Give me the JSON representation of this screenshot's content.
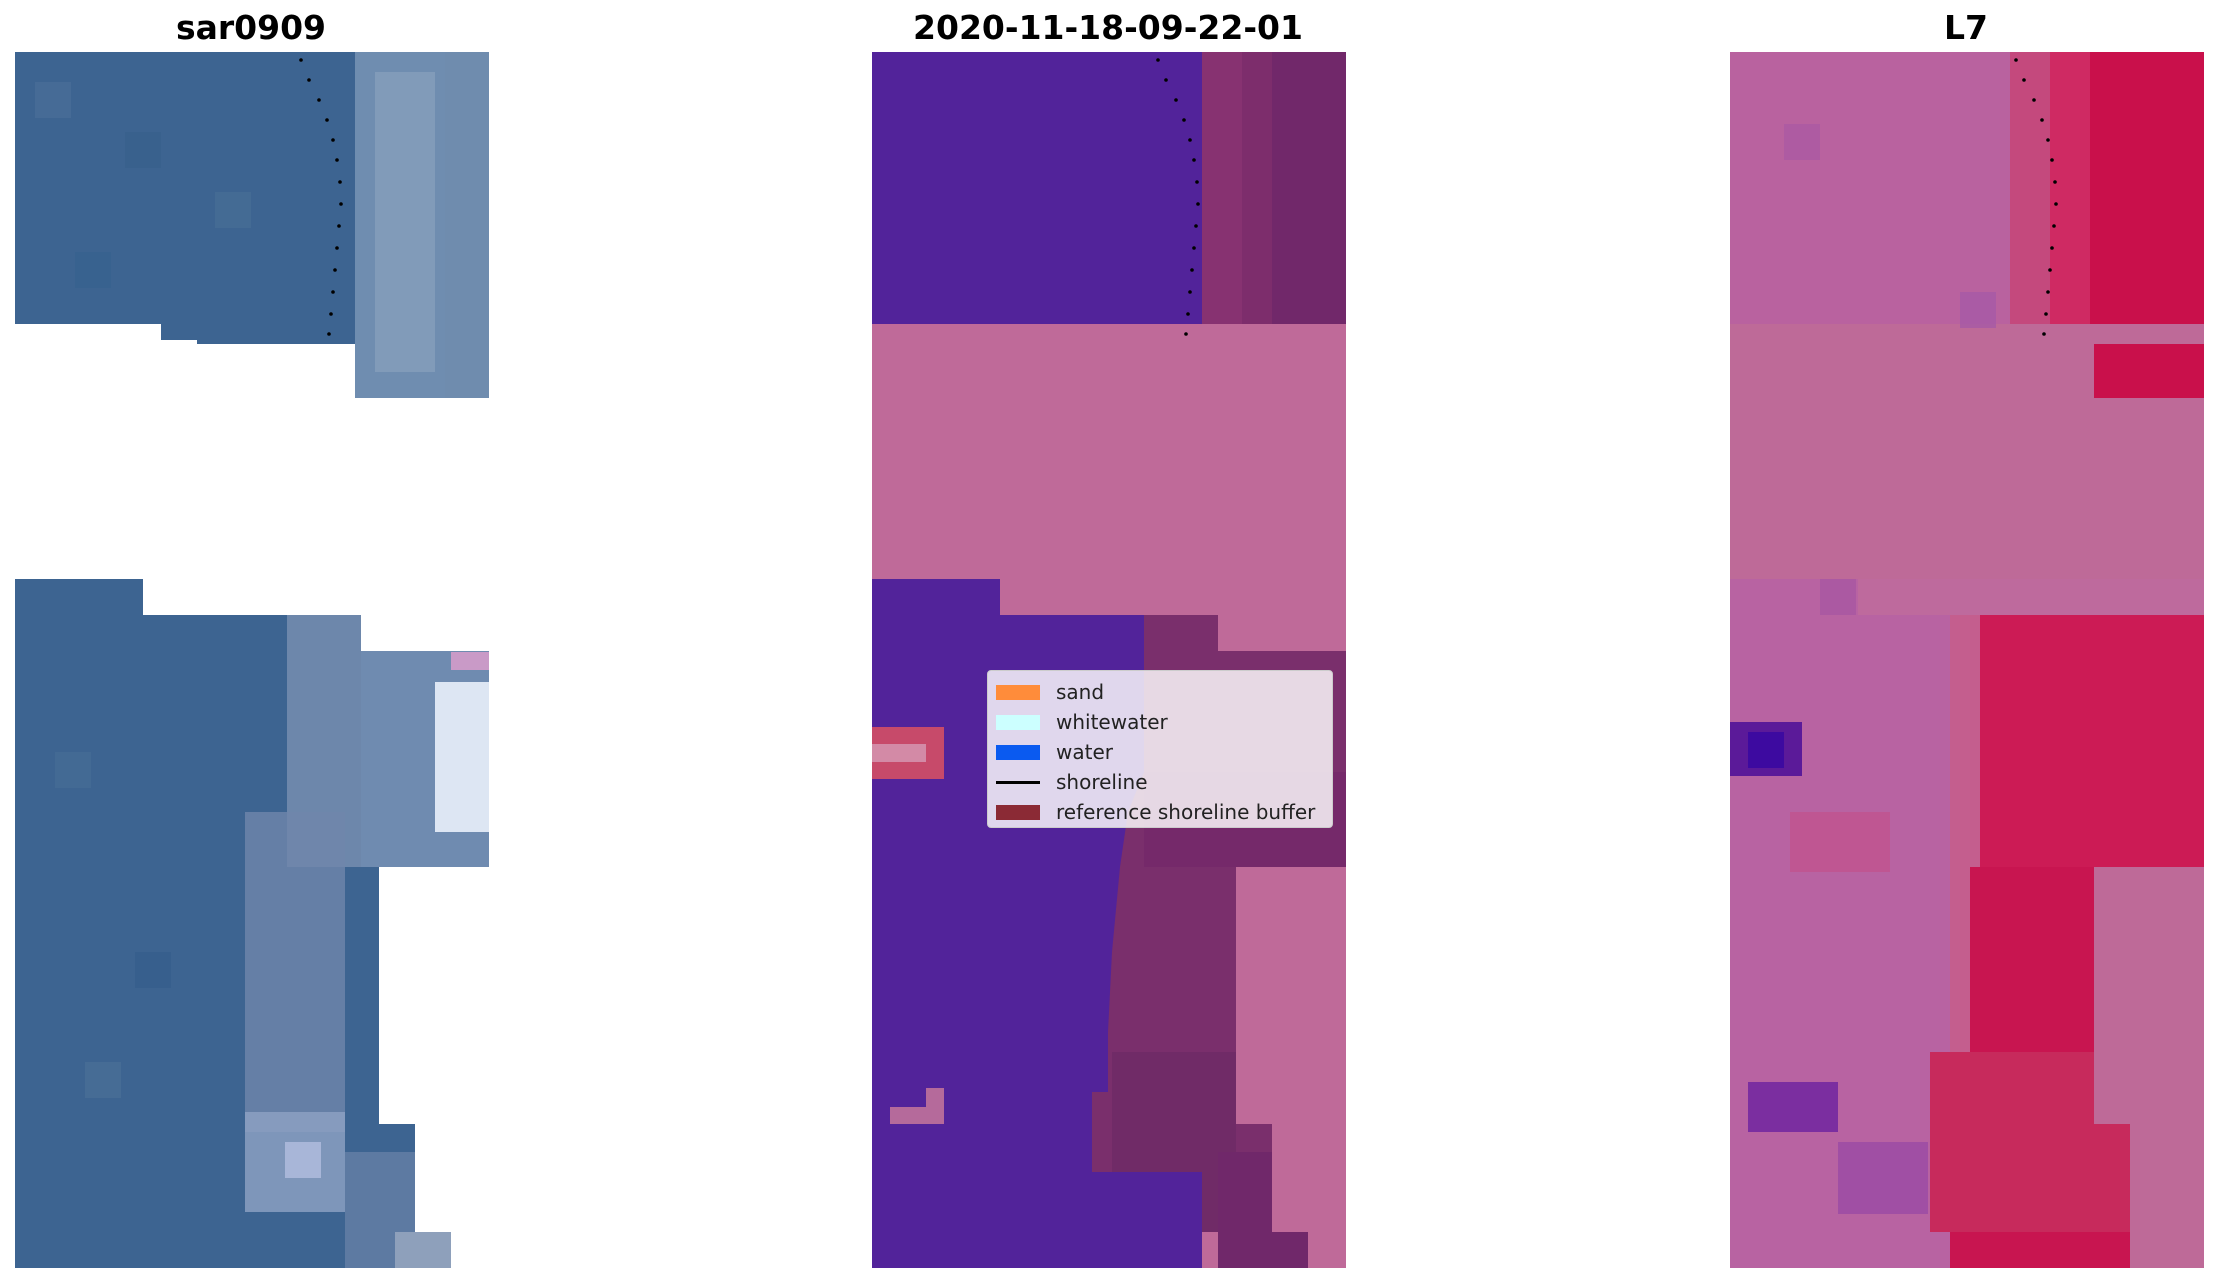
{
  "panels": [
    {
      "id": "rgb",
      "title": "sar0909"
    },
    {
      "id": "classified",
      "title": "2020-11-18-09-22-01"
    },
    {
      "id": "index",
      "title": "L7"
    }
  ],
  "legend": {
    "items": [
      {
        "label": "sand",
        "type": "patch",
        "color": "#ff8c3a"
      },
      {
        "label": "whitewater",
        "type": "patch",
        "color": "#ccffff"
      },
      {
        "label": "water",
        "type": "patch",
        "color": "#0a5af0"
      },
      {
        "label": "shoreline",
        "type": "line",
        "color": "#000000"
      },
      {
        "label": "reference shoreline buffer",
        "type": "patch",
        "color": "#8b2a35"
      }
    ]
  },
  "colors": {
    "rgb_water": "#3f6694",
    "classified_water": "#53249a",
    "classified_land": "#8a2f70",
    "masked_pink": "#be6898",
    "index_land": "#c8104a",
    "index_water": "#b9609e"
  }
}
